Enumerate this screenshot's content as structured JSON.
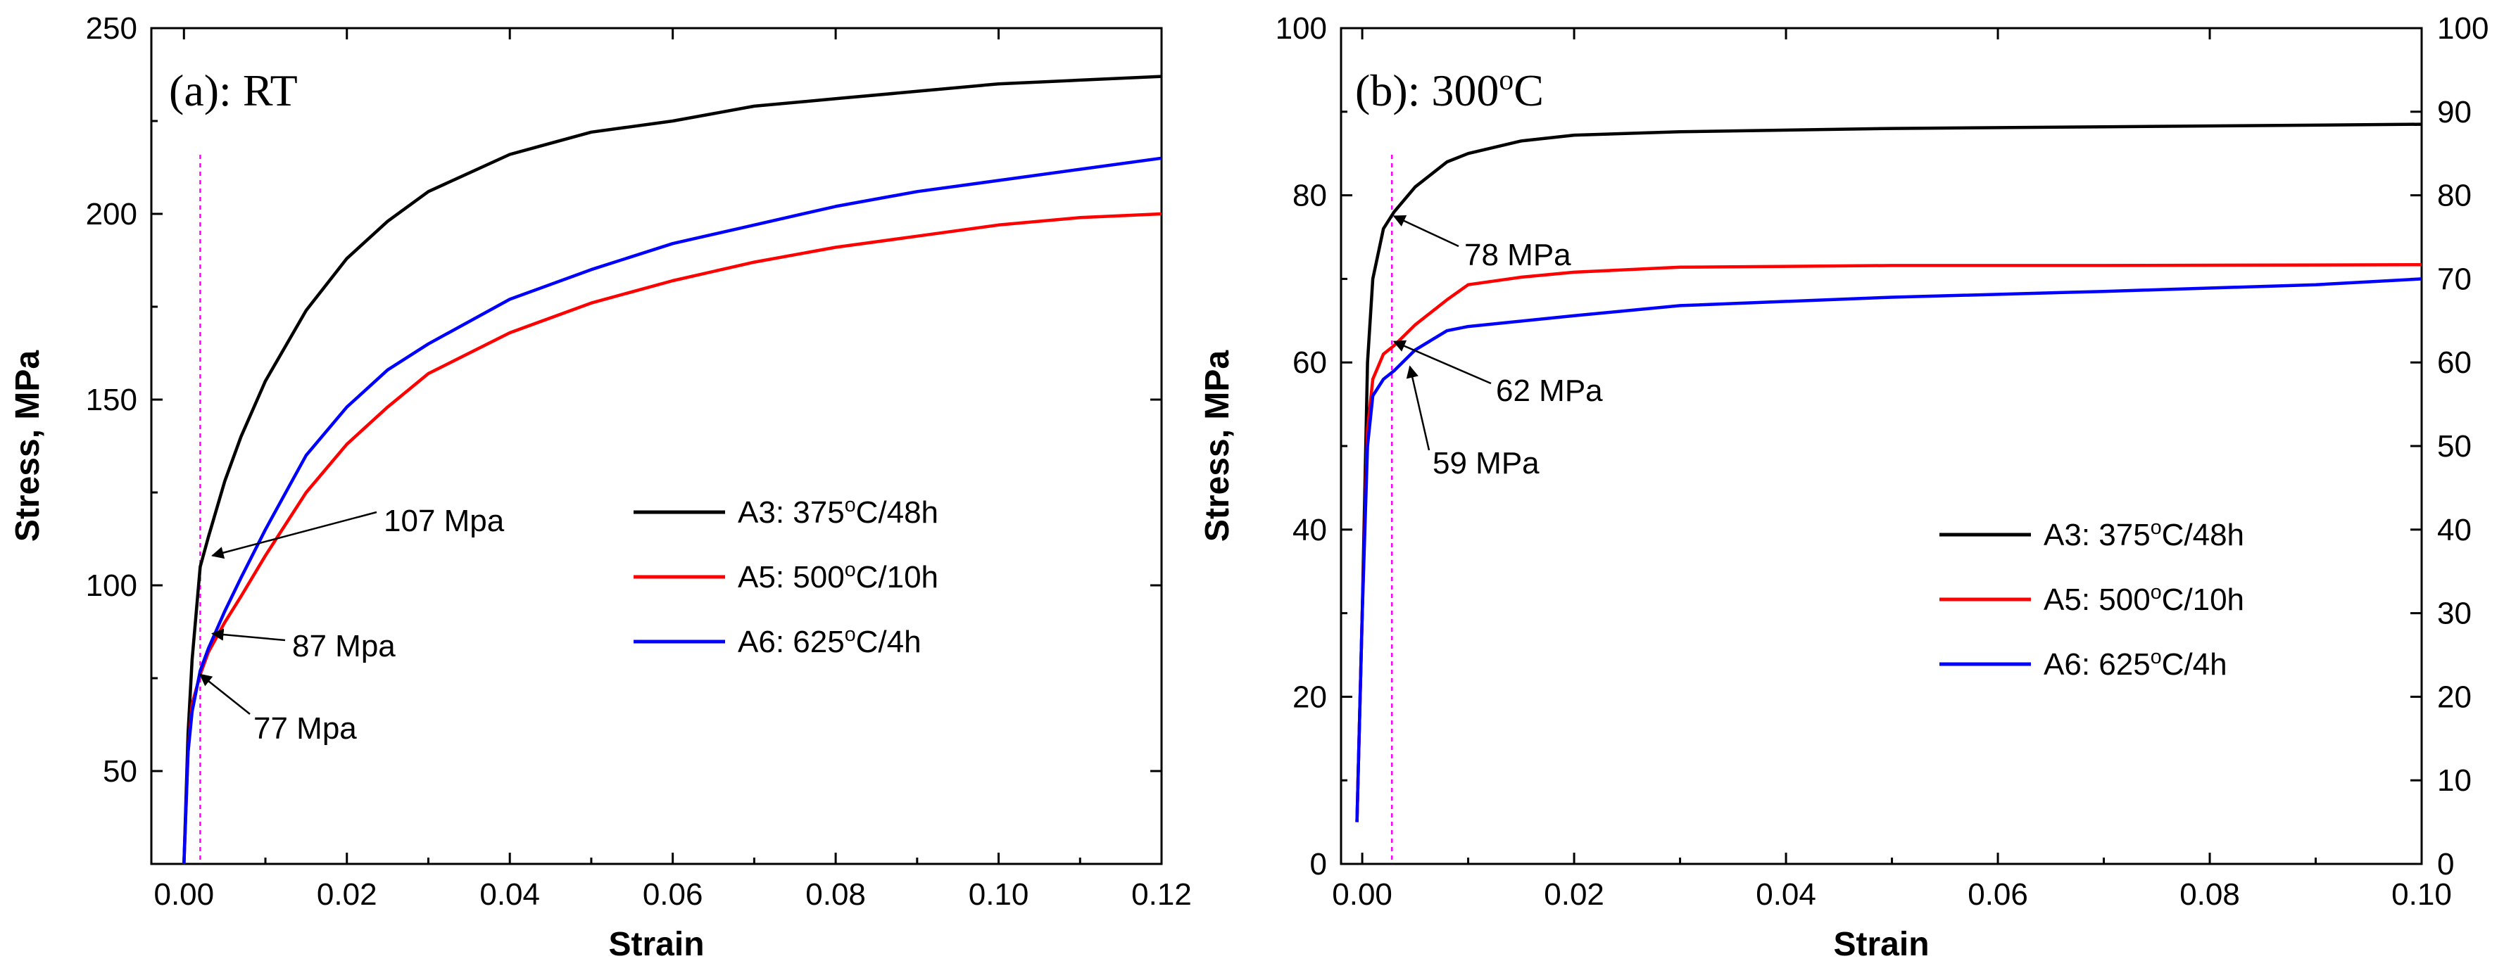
{
  "chart_data": [
    {
      "type": "line",
      "panel": "a",
      "title": "(a): RT",
      "xlabel": "Strain",
      "ylabel": "Stress, MPa",
      "xlim": [
        -0.004,
        0.12
      ],
      "ylim": [
        25,
        250
      ],
      "xticks": [
        "0.00",
        "0.02",
        "0.04",
        "0.06",
        "0.08",
        "0.10",
        "0.12"
      ],
      "yticks": [
        "50",
        "100",
        "150",
        "200",
        "250"
      ],
      "offset_line_x": 0.002,
      "series": [
        {
          "name": "A3: 375°C/48h",
          "label_main": "A3: 375",
          "label_sup": "o",
          "label_tail": "C/48h",
          "color": "#000000",
          "x": [
            0,
            0.0005,
            0.001,
            0.002,
            0.003,
            0.005,
            0.007,
            0.01,
            0.015,
            0.02,
            0.025,
            0.03,
            0.04,
            0.05,
            0.06,
            0.07,
            0.08,
            0.09,
            0.1,
            0.11,
            0.12
          ],
          "y": [
            25,
            60,
            80,
            105,
            113,
            128,
            140,
            155,
            174,
            188,
            198,
            206,
            216,
            222,
            225,
            229,
            231,
            233,
            235,
            236,
            237
          ]
        },
        {
          "name": "A5: 500°C/10h",
          "label_main": "A5: 500",
          "label_sup": "o",
          "label_tail": "C/10h",
          "color": "#ff0000",
          "x": [
            0,
            0.0005,
            0.001,
            0.002,
            0.003,
            0.005,
            0.007,
            0.01,
            0.015,
            0.02,
            0.025,
            0.03,
            0.04,
            0.05,
            0.06,
            0.07,
            0.08,
            0.09,
            0.1,
            0.11,
            0.12
          ],
          "y": [
            25,
            55,
            68,
            76,
            82,
            90,
            97,
            108,
            125,
            138,
            148,
            157,
            168,
            176,
            182,
            187,
            191,
            194,
            197,
            199,
            200
          ]
        },
        {
          "name": "A6: 625°C/4h",
          "label_main": "A6: 625",
          "label_sup": "o",
          "label_tail": "C/4h",
          "color": "#0000ff",
          "x": [
            0,
            0.0005,
            0.001,
            0.002,
            0.003,
            0.005,
            0.007,
            0.01,
            0.013,
            0.015,
            0.02,
            0.025,
            0.03,
            0.04,
            0.05,
            0.06,
            0.07,
            0.08,
            0.09,
            0.1,
            0.11,
            0.12
          ],
          "y": [
            25,
            55,
            66,
            77,
            83,
            93,
            102,
            115,
            127,
            135,
            148,
            158,
            165,
            177,
            185,
            192,
            197,
            202,
            206,
            209,
            212,
            215
          ]
        }
      ],
      "annotations": [
        {
          "text": "107 Mpa",
          "x": 0.0035,
          "y": 108
        },
        {
          "text": "87 Mpa",
          "x": 0.0035,
          "y": 87
        },
        {
          "text": "77 Mpa",
          "x": 0.002,
          "y": 76
        }
      ],
      "legend_position": "center-right"
    },
    {
      "type": "line",
      "panel": "b",
      "title_main": "(b): 300",
      "title_sup": "o",
      "title_tail": "C",
      "xlabel": "Strain",
      "ylabel": "Stress, MPa",
      "xlim": [
        -0.002,
        0.1
      ],
      "ylim": [
        0,
        100
      ],
      "xticks": [
        "0.00",
        "0.02",
        "0.04",
        "0.06",
        "0.08",
        "0.10"
      ],
      "yticks": [
        "0",
        "20",
        "40",
        "60",
        "80",
        "100"
      ],
      "y2ticks": [
        "0",
        "10",
        "20",
        "30",
        "40",
        "50",
        "60",
        "70",
        "80",
        "90",
        "100"
      ],
      "offset_line_x": 0.0028,
      "series": [
        {
          "name": "A3: 375°C/48h",
          "label_main": "A3: 375",
          "label_sup": "o",
          "label_tail": "C/48h",
          "color": "#000000",
          "x": [
            -0.0005,
            0,
            0.0005,
            0.001,
            0.002,
            0.003,
            0.005,
            0.008,
            0.01,
            0.015,
            0.02,
            0.03,
            0.05,
            0.07,
            0.1
          ],
          "y": [
            5,
            30,
            60,
            70,
            76,
            78,
            81,
            84,
            85,
            86.5,
            87.2,
            87.6,
            88,
            88.2,
            88.5
          ]
        },
        {
          "name": "A5: 500°C/10h",
          "label_main": "A5: 500",
          "label_sup": "o",
          "label_tail": "C/10h",
          "color": "#ff0000",
          "x": [
            -0.0005,
            0,
            0.0005,
            0.001,
            0.002,
            0.003,
            0.005,
            0.008,
            0.01,
            0.015,
            0.02,
            0.03,
            0.05,
            0.07,
            0.1
          ],
          "y": [
            5,
            30,
            52,
            58,
            61,
            62,
            64.5,
            67.5,
            69.3,
            70.2,
            70.8,
            71.4,
            71.6,
            71.6,
            71.7
          ]
        },
        {
          "name": "A6: 625°C/4h",
          "label_main": "A6: 625",
          "label_sup": "o",
          "label_tail": "C/4h",
          "color": "#0000ff",
          "x": [
            -0.0005,
            0,
            0.0005,
            0.001,
            0.002,
            0.003,
            0.005,
            0.008,
            0.01,
            0.02,
            0.03,
            0.05,
            0.07,
            0.09,
            0.1
          ],
          "y": [
            5,
            30,
            50,
            56,
            58,
            59,
            61.5,
            63.8,
            64.3,
            65.6,
            66.8,
            67.8,
            68.5,
            69.3,
            70
          ]
        }
      ],
      "annotations": [
        {
          "text": "78 MPa",
          "x": 0.003,
          "y": 77.5
        },
        {
          "text": "62 MPa",
          "x": 0.003,
          "y": 62.5
        },
        {
          "text": "59 MPa",
          "x": 0.0045,
          "y": 59.5
        }
      ],
      "legend_position": "lower-right"
    }
  ]
}
